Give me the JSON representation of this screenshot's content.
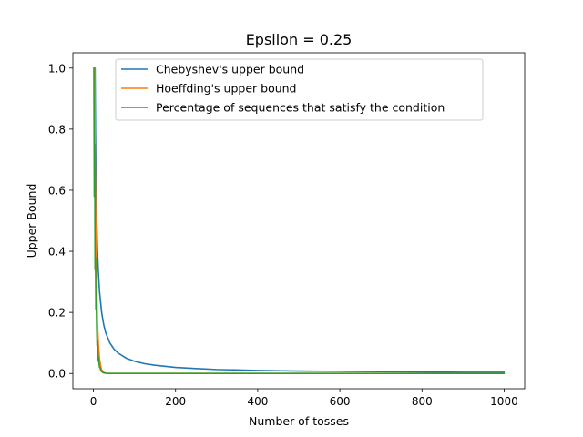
{
  "chart_data": {
    "type": "line",
    "title": "Epsilon = 0.25",
    "xlabel": "Number of tosses",
    "ylabel": "Upper Bound",
    "xlim": [
      -50,
      1050
    ],
    "ylim": [
      -0.05,
      1.05
    ],
    "xticks": [
      0,
      200,
      400,
      600,
      800,
      1000
    ],
    "yticks": [
      0.0,
      0.2,
      0.4,
      0.6,
      0.8,
      1.0
    ],
    "xtick_labels": [
      "0",
      "200",
      "400",
      "600",
      "800",
      "1000"
    ],
    "ytick_labels": [
      "0.0",
      "0.2",
      "0.4",
      "0.6",
      "0.8",
      "1.0"
    ],
    "grid": false,
    "legend_position": "top-center",
    "series": [
      {
        "name": "Chebyshev's upper bound",
        "color": "#1f77b4",
        "x": [
          1,
          2,
          3,
          4,
          5,
          6,
          8,
          10,
          12,
          15,
          20,
          25,
          30,
          40,
          50,
          60,
          80,
          100,
          125,
          150,
          200,
          250,
          300,
          400,
          500,
          600,
          700,
          800,
          900,
          1000
        ],
        "y": [
          1.0,
          1.0,
          1.0,
          1.0,
          0.8,
          0.667,
          0.5,
          0.4,
          0.333,
          0.267,
          0.2,
          0.16,
          0.133,
          0.1,
          0.08,
          0.067,
          0.05,
          0.04,
          0.032,
          0.027,
          0.02,
          0.016,
          0.013,
          0.01,
          0.008,
          0.007,
          0.006,
          0.005,
          0.004,
          0.004
        ]
      },
      {
        "name": "Hoeffding's upper bound",
        "color": "#ff7f0e",
        "x": [
          1,
          2,
          3,
          4,
          5,
          6,
          7,
          8,
          10,
          12,
          15,
          18,
          20,
          25,
          30,
          35,
          40,
          50,
          60,
          80,
          100,
          150,
          200,
          1000
        ],
        "y": [
          1.0,
          1.0,
          1.0,
          0.736,
          0.573,
          0.446,
          0.348,
          0.271,
          0.164,
          0.1,
          0.047,
          0.022,
          0.013,
          0.0039,
          0.0011,
          0.0003,
          0.0001,
          0.0,
          0.0,
          0.0,
          0.0,
          0.0,
          0.0,
          0.0
        ]
      },
      {
        "name": "Percentage of sequences that satisfy the condition",
        "color": "#2ca02c",
        "x": [
          1,
          2,
          3,
          4,
          5,
          6,
          7,
          8,
          9,
          10,
          11,
          12,
          13,
          14,
          15,
          16,
          18,
          20,
          22,
          25,
          28,
          30,
          35,
          40,
          50,
          60,
          80,
          100,
          1000
        ],
        "y": [
          1.0,
          0.58,
          0.75,
          0.34,
          0.38,
          0.21,
          0.23,
          0.15,
          0.09,
          0.11,
          0.07,
          0.04,
          0.05,
          0.03,
          0.02,
          0.02,
          0.01,
          0.006,
          0.004,
          0.002,
          0.001,
          0.001,
          0.0,
          0.0,
          0.0,
          0.0,
          0.0,
          0.0,
          0.0
        ]
      }
    ]
  }
}
